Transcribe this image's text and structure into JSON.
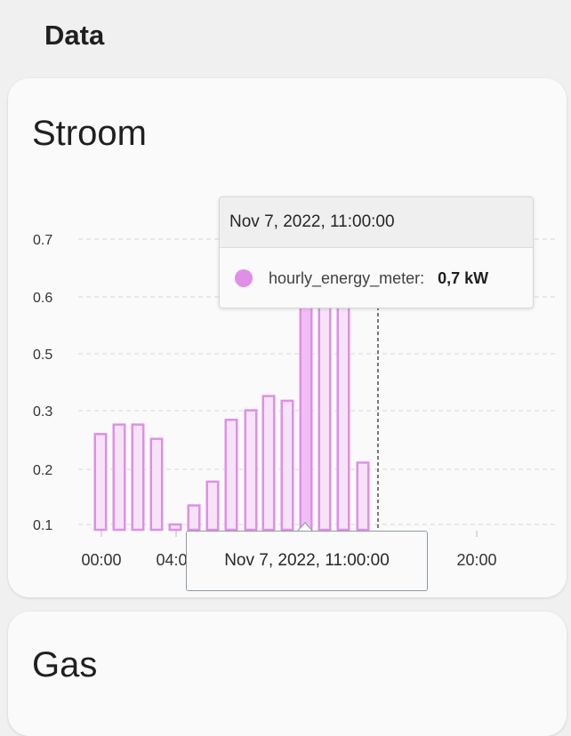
{
  "page": {
    "title": "Data"
  },
  "stroom": {
    "title": "Stroom",
    "tooltip": {
      "header": "Nov 7, 2022, 11:00:00",
      "series_name": "hourly_energy_meter:",
      "series_value": "0,7 kW",
      "series_color": "#df8fe7"
    },
    "axis_pointer_label": "Nov 7, 2022, 11:00:00"
  },
  "gas": {
    "title": "Gas"
  },
  "chart_data": {
    "type": "bar",
    "series": [
      {
        "name": "hourly_energy_meter",
        "x": [
          "00:00",
          "01:00",
          "02:00",
          "03:00",
          "04:00",
          "05:00",
          "06:00",
          "07:00",
          "08:00",
          "09:00",
          "10:00",
          "11:00",
          "12:00",
          "13:00",
          "14:00"
        ],
        "values": [
          0.29,
          0.31,
          0.31,
          0.28,
          0.1,
          0.14,
          0.19,
          0.32,
          0.34,
          0.37,
          0.36,
          0.7,
          0.7,
          0.7,
          0.23
        ]
      }
    ],
    "x_tick_labels": [
      "00:00",
      "04:00",
      "20:00"
    ],
    "y_tick_labels": [
      "0.1",
      "0.2",
      "0.3",
      "0.5",
      "0.6",
      "0.7"
    ],
    "ylim": [
      0.1,
      0.7
    ],
    "grid": true,
    "bar_color": "#df8fe7",
    "bar_fill": "#f6e3f8",
    "highlight_fill": "#f0bdf4"
  }
}
